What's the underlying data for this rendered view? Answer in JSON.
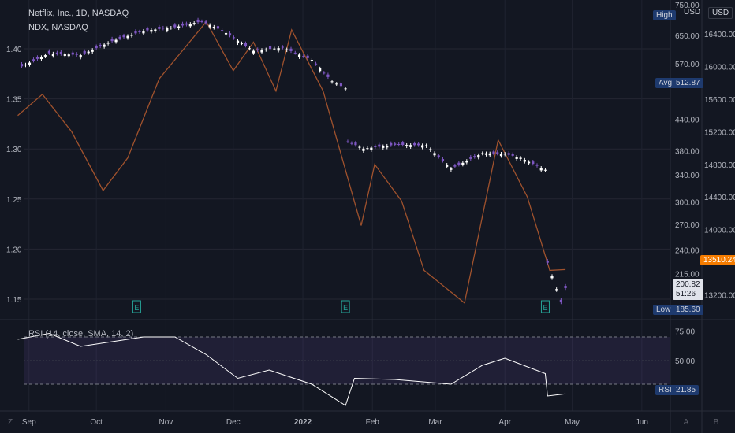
{
  "legend": {
    "main_title": "Netflix, Inc., 1D, NASDAQ",
    "compare_title": "NDX, NASDAQ",
    "rsi_title": "RSI (14, close, SMA, 14, 2)"
  },
  "price_scale": {
    "currency": "USD",
    "left_ticks": [
      "1.40",
      "1.35",
      "1.30",
      "1.25",
      "1.20",
      "1.15"
    ],
    "mid_ticks": [
      "750.00",
      "650.00",
      "570.00",
      "512.87",
      "440.00",
      "380.00",
      "340.00",
      "300.00",
      "270.00",
      "240.00",
      "215.00",
      "185.60"
    ],
    "right_ticks": [
      "16400.00",
      "16000.00",
      "15600.00",
      "15200.00",
      "14800.00",
      "14400.00",
      "14000.00",
      "13600.00",
      "13200.00"
    ],
    "high_label": "High",
    "avg_label": "Avg",
    "avg_value": "512.87",
    "low_label": "Low",
    "low_value": "185.60",
    "ndx_last": "13510.24",
    "last_price": "200.82",
    "countdown": "51:26"
  },
  "rsi_scale": {
    "ticks": [
      "75.00",
      "50.00"
    ],
    "label": "RSI",
    "value": "21.85"
  },
  "time_axis": [
    "Sep",
    "Oct",
    "Nov",
    "Dec",
    "2022",
    "Feb",
    "Mar",
    "Apr",
    "May",
    "Jun"
  ],
  "bottom_buttons": [
    "Z",
    "A",
    "B"
  ],
  "earnings_marker": "E",
  "colors": {
    "background": "#131722",
    "up_candle": "#ffffff",
    "down_candle": "#7e57c2",
    "ndx_line": "#a0522d",
    "rsi_line": "#ffffff",
    "rsi_band": "#7e57c2",
    "earnings": "#26a69a",
    "ndx_tag": "#f57c00",
    "scale_tag": "#1e3a6e"
  },
  "chart_data": [
    {
      "type": "candlestick",
      "title": "Netflix, Inc., 1D, NASDAQ",
      "ylabel": "USD",
      "scale": "log",
      "ylim": [
        178,
        755
      ],
      "series": [
        {
          "date": "2021-08-27",
          "close": 558
        },
        {
          "date": "2021-09-10",
          "close": 598
        },
        {
          "date": "2021-09-24",
          "close": 593
        },
        {
          "date": "2021-10-08",
          "close": 633
        },
        {
          "date": "2021-10-22",
          "close": 664
        },
        {
          "date": "2021-11-05",
          "close": 675
        },
        {
          "date": "2021-11-17",
          "close": 694
        },
        {
          "date": "2021-11-26",
          "close": 665
        },
        {
          "date": "2021-12-10",
          "close": 605
        },
        {
          "date": "2021-12-23",
          "close": 614
        },
        {
          "date": "2022-01-05",
          "close": 580
        },
        {
          "date": "2022-01-14",
          "close": 525
        },
        {
          "date": "2022-01-20",
          "close": 508
        },
        {
          "date": "2022-01-21",
          "close": 397
        },
        {
          "date": "2022-01-28",
          "close": 384
        },
        {
          "date": "2022-02-11",
          "close": 391
        },
        {
          "date": "2022-02-25",
          "close": 390
        },
        {
          "date": "2022-03-08",
          "close": 350
        },
        {
          "date": "2022-03-22",
          "close": 376
        },
        {
          "date": "2022-04-01",
          "close": 375
        },
        {
          "date": "2022-04-08",
          "close": 368
        },
        {
          "date": "2022-04-19",
          "close": 348
        },
        {
          "date": "2022-04-20",
          "close": 226
        },
        {
          "date": "2022-04-26",
          "close": 188
        },
        {
          "date": "2022-04-28",
          "close": 200.82
        }
      ]
    },
    {
      "type": "line",
      "title": "NDX, NASDAQ",
      "series": [
        {
          "date": "2021-08-27",
          "value": 15400
        },
        {
          "date": "2021-09-07",
          "value": 15660
        },
        {
          "date": "2021-09-20",
          "value": 15200
        },
        {
          "date": "2021-10-04",
          "value": 14480
        },
        {
          "date": "2021-10-15",
          "value": 14880
        },
        {
          "date": "2021-10-29",
          "value": 15850
        },
        {
          "date": "2021-11-19",
          "value": 16550
        },
        {
          "date": "2021-12-01",
          "value": 15950
        },
        {
          "date": "2021-12-10",
          "value": 16300
        },
        {
          "date": "2021-12-20",
          "value": 15700
        },
        {
          "date": "2021-12-27",
          "value": 16450
        },
        {
          "date": "2022-01-10",
          "value": 15700
        },
        {
          "date": "2022-01-27",
          "value": 14050
        },
        {
          "date": "2022-02-02",
          "value": 14800
        },
        {
          "date": "2022-02-14",
          "value": 14350
        },
        {
          "date": "2022-02-24",
          "value": 13500
        },
        {
          "date": "2022-03-14",
          "value": 13100
        },
        {
          "date": "2022-03-29",
          "value": 15100
        },
        {
          "date": "2022-04-11",
          "value": 14400
        },
        {
          "date": "2022-04-21",
          "value": 13500
        },
        {
          "date": "2022-04-28",
          "value": 13510.24
        }
      ]
    },
    {
      "type": "line",
      "title": "RSI (14, close, SMA, 14, 2)",
      "ylim": [
        10,
        82
      ],
      "band": [
        30,
        70
      ],
      "series": [
        {
          "date": "2021-08-27",
          "value": 68
        },
        {
          "date": "2021-09-10",
          "value": 73
        },
        {
          "date": "2021-09-24",
          "value": 62
        },
        {
          "date": "2021-10-08",
          "value": 66
        },
        {
          "date": "2021-10-22",
          "value": 70
        },
        {
          "date": "2021-11-05",
          "value": 70
        },
        {
          "date": "2021-11-19",
          "value": 55
        },
        {
          "date": "2021-12-03",
          "value": 35
        },
        {
          "date": "2021-12-17",
          "value": 42
        },
        {
          "date": "2022-01-05",
          "value": 30
        },
        {
          "date": "2022-01-20",
          "value": 12
        },
        {
          "date": "2022-01-24",
          "value": 35
        },
        {
          "date": "2022-02-11",
          "value": 34
        },
        {
          "date": "2022-03-08",
          "value": 30
        },
        {
          "date": "2022-03-22",
          "value": 46
        },
        {
          "date": "2022-04-01",
          "value": 52
        },
        {
          "date": "2022-04-19",
          "value": 39
        },
        {
          "date": "2022-04-20",
          "value": 20
        },
        {
          "date": "2022-04-28",
          "value": 21.85
        }
      ]
    }
  ]
}
